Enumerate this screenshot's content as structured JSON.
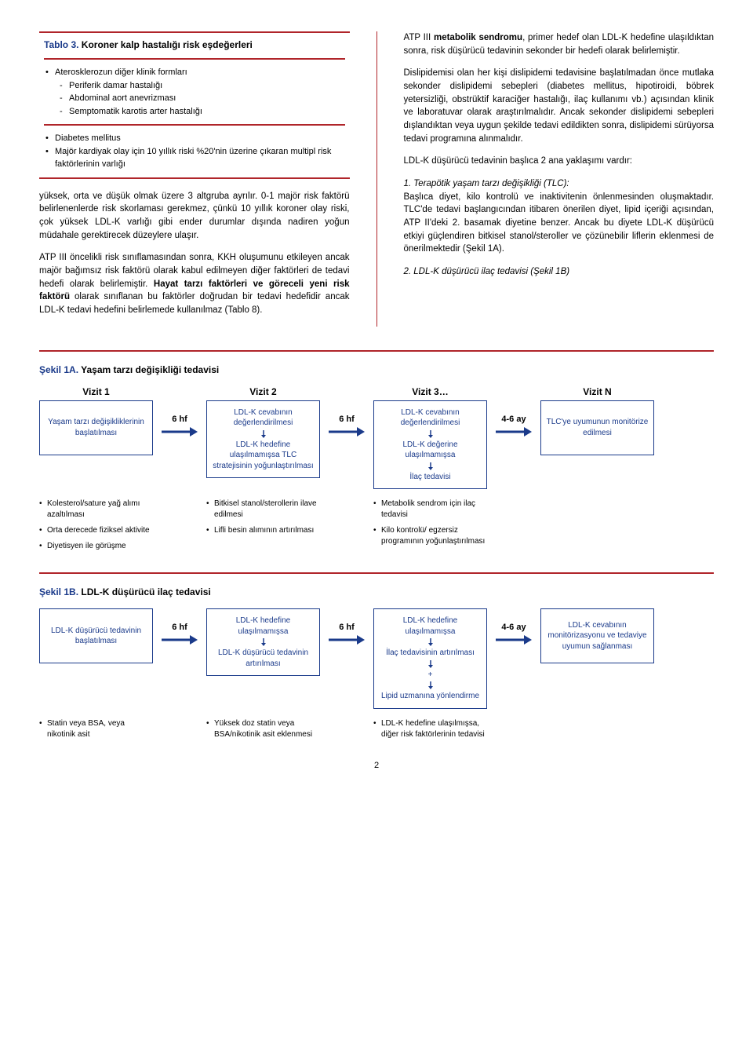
{
  "table3": {
    "title_prefix": "Tablo 3.",
    "title_rest": " Koroner kalp hastalığı risk eşdeğerleri",
    "group1_head": "Aterosklerozun diğer klinik formları",
    "group1_items": [
      "Periferik damar hastalığı",
      "Abdominal aort anevrizması",
      "Semptomatik karotis arter hastalığı"
    ],
    "group2_items": [
      "Diabetes mellitus",
      "Majör kardiyak olay için 10 yıllık riski %20'nin üzerine çıkaran multipl risk faktörlerinin varlığı"
    ]
  },
  "left_paras": [
    "yüksek, orta ve düşük olmak üzere 3 altgruba ayrılır. 0-1 majör risk faktörü belirlenenlerde risk skorlaması gerekmez, çünkü 10 yıllık koroner olay riski, çok yüksek LDL-K varlığı gibi ender durumlar dışında nadiren yoğun müdahale gerektirecek düzeylere ulaşır.",
    "ATP III öncelikli risk sınıflamasından sonra, KKH oluşumunu etkileyen ancak majör bağımsız risk faktörü olarak kabul edilmeyen diğer faktörleri de tedavi hedefi olarak belirlemiştir. <b>Hayat tarzı faktörleri ve göreceli yeni risk faktörü</b> olarak sınıflanan bu faktörler doğrudan bir tedavi hedefidir ancak LDL-K tedavi hedefini belirlemede kullanılmaz (Tablo 8)."
  ],
  "right_paras": [
    "ATP III <b>metabolik sendromu</b>, primer hedef olan LDL-K hedefine ulaşıldıktan sonra, risk düşürücü tedavinin sekonder bir hedefi olarak belirlemiştir.",
    "Dislipidemisi olan her kişi dislipidemi tedavisine başlatılmadan önce mutlaka sekonder dislipidemi sebepleri (diabetes mellitus, hipotiroidi, böbrek yetersizliği, obstrüktif karaciğer hastalığı, ilaç kullanımı vb.) açısından klinik ve laboratuvar olarak araştırılmalıdır. Ancak sekonder dislipidemi sebepleri dışlandıktan veya uygun şekilde tedavi edildikten sonra, dislipidemi sürüyorsa tedavi programına alınmalıdır.",
    "LDL-K düşürücü tedavinin başlıca 2 ana yaklaşımı vardır:",
    "<i>1. Terapötik yaşam tarzı değişikliği (TLC):</i><br>Başlıca diyet, kilo kontrolü ve inaktivitenin önlenmesinden oluşmaktadır. TLC'de tedavi başlangıcından itibaren önerilen diyet, lipid içeriği açısından, ATP II'deki 2. basamak diyetine benzer. Ancak bu diyete LDL-K düşürücü etkiyi güçlendiren bitkisel stanol/steroller ve çözünebilir liflerin eklenmesi de önerilmektedir (Şekil 1A).",
    "<i>2. LDL-K düşürücü ilaç tedavisi (Şekil 1B)</i>"
  ],
  "fig1a": {
    "title_prefix": "Şekil 1A.",
    "title_rest": " Yaşam tarzı değişikliği tedavisi",
    "headers": [
      "Vizit 1",
      "Vizit 2",
      "Vizit 3…",
      "Vizit N"
    ],
    "arrows": [
      "6 hf",
      "6 hf",
      "4-6 ay"
    ],
    "boxes": [
      "Yaşam tarzı değişikliklerinin başlatılması",
      "LDL-K cevabının değerlendirilmesi|LDL-K hedefine ulaşılmamışsa TLC stratejisinin yoğunlaştırılması",
      "LDL-K cevabının değerlendirilmesi|LDL-K değerine ulaşılmamışsa|İlaç tedavisi",
      "TLC'ye uyumunun monitörize edilmesi"
    ],
    "sub": [
      [
        "Kolesterol/sature yağ alımı azaltılması",
        "Orta derecede fiziksel aktivite",
        "Diyetisyen ile görüşme"
      ],
      [
        "Bitkisel stanol/sterollerin ilave edilmesi",
        "Lifli besin alımının artırılması"
      ],
      [
        "Metabolik sendrom için ilaç tedavisi",
        "Kilo kontrolü/ egzersiz programının yoğunlaştırılması"
      ]
    ]
  },
  "fig1b": {
    "title_prefix": "Şekil 1B.",
    "title_rest": " LDL-K düşürücü ilaç tedavisi",
    "arrows": [
      "6 hf",
      "6 hf",
      "4-6 ay"
    ],
    "boxes": [
      "LDL-K düşürücü tedavinin başlatılması",
      "LDL-K hedefine ulaşılmamışsa|LDL-K düşürücü tedavinin artırılması",
      "LDL-K hedefine ulaşılmamışsa|İlaç tedavisinin artırılması|+|Lipid uzmanına yönlendirme",
      "LDL-K cevabının monitörizasyonu ve tedaviye uyumun sağlanması"
    ],
    "sub": [
      [
        "Statin veya BSA, veya nikotinik asit"
      ],
      [
        "Yüksek doz statin veya BSA/nikotinik asit eklenmesi"
      ],
      [
        "LDL-K hedefine ulaşılmışsa, diğer risk faktörlerinin tedavisi"
      ]
    ]
  },
  "colors": {
    "red": "#b0252a",
    "blue": "#1a3a8a"
  },
  "pagenum": "2"
}
